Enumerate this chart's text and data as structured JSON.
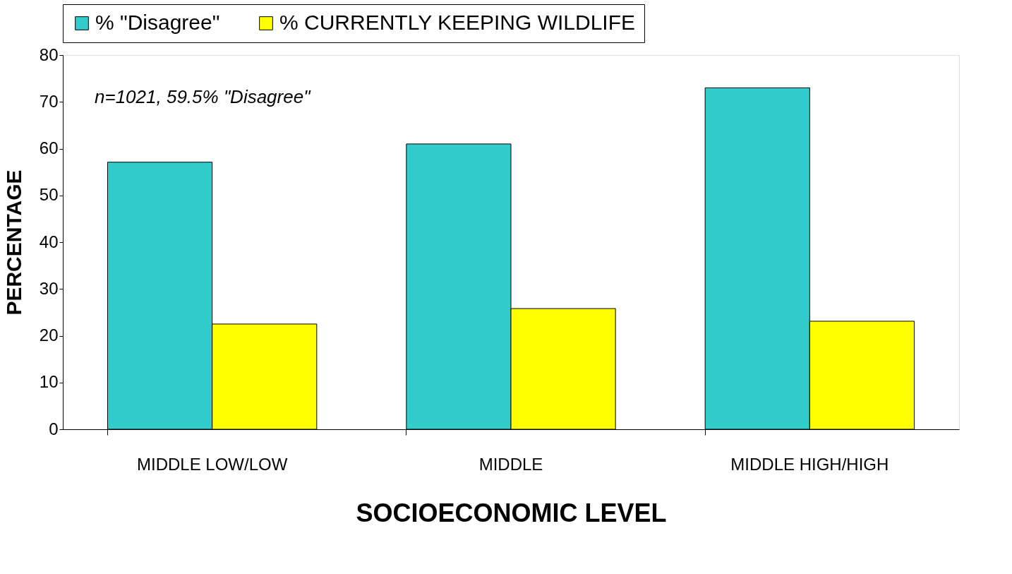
{
  "chart_data": {
    "type": "bar",
    "xlabel": "SOCIOECONOMIC LEVEL",
    "ylabel": "PERCENTAGE",
    "categories": [
      "MIDDLE LOW/LOW",
      "MIDDLE",
      "MIDDLE HIGH/HIGH"
    ],
    "series": [
      {
        "name": "% \"Disagree\"",
        "color": "#33cccc",
        "values": [
          57.1,
          61.0,
          73.0
        ]
      },
      {
        "name": "% CURRENTLY KEEPING WILDLIFE",
        "color": "#ffff00",
        "values": [
          22.5,
          25.8,
          23.1
        ]
      }
    ],
    "ylim": [
      0,
      80
    ],
    "yticks": [
      0,
      10,
      20,
      30,
      40,
      50,
      60,
      70,
      80
    ],
    "grid": false,
    "legend": "top",
    "annotations": [
      "n=1021, 59.5% \"Disagree\""
    ]
  }
}
